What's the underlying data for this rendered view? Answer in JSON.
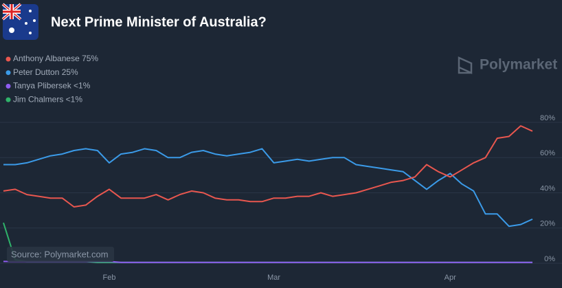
{
  "chart_data": {
    "type": "line",
    "title": "Next Prime Minister of Australia?",
    "watermark": "Polymarket",
    "source": "Source: Polymarket.com",
    "categories": [
      null,
      null,
      null,
      null,
      null,
      null,
      null,
      null,
      null,
      "Feb",
      null,
      null,
      null,
      null,
      null,
      null,
      null,
      null,
      null,
      null,
      null,
      null,
      null,
      "Mar",
      null,
      null,
      null,
      null,
      null,
      null,
      null,
      null,
      null,
      null,
      null,
      null,
      null,
      null,
      "Apr",
      null,
      null,
      null,
      null,
      null,
      null,
      null
    ],
    "series": [
      {
        "name": "Anthony Albanese 75%",
        "color": "#e9574f",
        "values": [
          41,
          42,
          39,
          38,
          37,
          37,
          32,
          33,
          38,
          42,
          37,
          37,
          37,
          39,
          36,
          39,
          41,
          40,
          37,
          36,
          36,
          35,
          35,
          37,
          37,
          38,
          38,
          40,
          38,
          39,
          40,
          42,
          44,
          46,
          47,
          49,
          56,
          52,
          49,
          53,
          57,
          60,
          71,
          72,
          78,
          75
        ]
      },
      {
        "name": "Peter Dutton 25%",
        "color": "#3b9be9",
        "values": [
          56,
          56,
          57,
          59,
          61,
          62,
          64,
          65,
          64,
          57,
          62,
          63,
          65,
          64,
          60,
          60,
          63,
          64,
          62,
          61,
          62,
          63,
          65,
          57,
          58,
          59,
          58,
          59,
          60,
          60,
          56,
          55,
          54,
          53,
          52,
          47,
          42,
          47,
          51,
          45,
          41,
          28,
          28,
          21,
          22,
          25
        ]
      },
      {
        "name": "Tanya Plibersek <1%",
        "color": "#8e5cf0",
        "values": [
          1,
          1,
          1,
          1,
          1,
          1,
          1,
          1,
          1,
          1,
          0.5,
          0.5,
          0.5,
          0.5,
          0.5,
          0.5,
          0.5,
          0.5,
          0.5,
          0.5,
          0.5,
          0.5,
          0.5,
          0.5,
          0.5,
          0.5,
          0.5,
          0.5,
          0.5,
          0.5,
          0.5,
          0.5,
          0.5,
          0.5,
          0.5,
          0.5,
          0.5,
          0.5,
          0.5,
          0.5,
          0.5,
          0.5,
          0.5,
          0.5,
          0.5,
          0.5
        ]
      },
      {
        "name": "Jim Chalmers <1%",
        "color": "#2fb36a",
        "values": [
          23,
          2,
          1,
          1,
          1,
          1,
          1,
          1,
          0.5,
          0.5,
          0.5,
          0.5,
          0.5,
          0.5,
          0.5,
          0.5,
          0.5,
          0.5,
          0.5,
          0.5,
          0.5,
          0.5,
          0.5,
          0.5,
          0.5,
          0.5,
          0.5,
          0.5,
          0.5,
          0.5,
          0.5,
          0.5,
          0.5,
          0.5,
          0.5,
          0.5,
          0.5,
          0.5,
          0.5,
          0.5,
          0.5,
          0.5,
          0.5,
          0.5,
          0.5,
          0.5
        ]
      }
    ],
    "ylim": [
      0,
      80
    ],
    "yticks": [
      {
        "value": 0,
        "label": "0%"
      },
      {
        "value": 20,
        "label": "20%"
      },
      {
        "value": 40,
        "label": "40%"
      },
      {
        "value": 60,
        "label": "60%"
      },
      {
        "value": 80,
        "label": "80%"
      }
    ],
    "grid": true
  }
}
